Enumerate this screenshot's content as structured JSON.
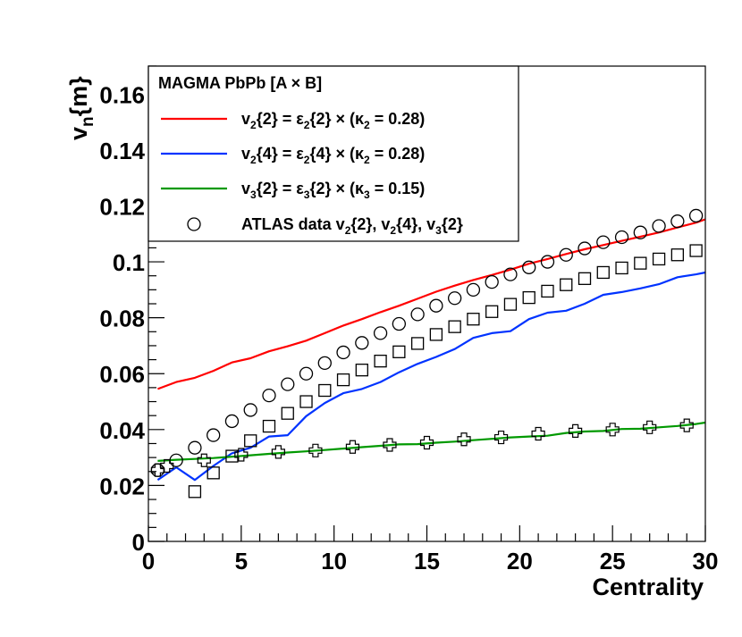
{
  "chart_data": {
    "type": "line",
    "title": "",
    "xlabel": "Centrality",
    "ylabel": "v_n{m}",
    "ylabel_main": "v",
    "ylabel_sub": "n",
    "ylabel_rest": "{m}",
    "xlim": [
      0,
      30
    ],
    "ylim": [
      0,
      0.17
    ],
    "x_ticks": [
      0,
      5,
      10,
      15,
      20,
      25,
      30
    ],
    "x_tick_labels": [
      "0",
      "5",
      "10",
      "15",
      "20",
      "25",
      "30"
    ],
    "y_ticks": [
      0,
      0.02,
      0.04,
      0.06,
      0.08,
      0.1,
      0.12,
      0.14,
      0.16
    ],
    "y_tick_labels": [
      "0",
      "0.02",
      "0.04",
      "0.06",
      "0.08",
      "0.1",
      "0.12",
      "0.14",
      "0.16"
    ],
    "grid": false,
    "legend_position": "top-left",
    "legend_title": "MAGMA PbPb [A × B]",
    "legend": [
      {
        "label": "v2{2} = ε2{2} × (κ2 = 0.28)",
        "kind": "line",
        "color": "#ff0000"
      },
      {
        "label": "v2{4} = ε2{4} × (κ2 = 0.28)",
        "kind": "line",
        "color": "#0033ff"
      },
      {
        "label": "v3{2} = ε3{2} × (κ3 = 0.15)",
        "kind": "line",
        "color": "#009900"
      },
      {
        "label": "ATLAS data v2{2}, v2{4}, v3{2}",
        "kind": "marker",
        "color": "#000000"
      }
    ],
    "series": [
      {
        "name": "v2{2} = ε2{2} × (κ2 = 0.28)",
        "kind": "line",
        "color": "#ff0000",
        "x": [
          0.5,
          1.5,
          2.5,
          3.5,
          4.5,
          5.5,
          6.5,
          7.5,
          8.5,
          9.5,
          10.5,
          11.5,
          12.5,
          13.5,
          14.5,
          15.5,
          16.5,
          17.5,
          18.5,
          19.5,
          20.5,
          21.5,
          22.5,
          23.5,
          24.5,
          25.5,
          26.5,
          27.5,
          28.5,
          29.5,
          30
        ],
        "y": [
          0.0545,
          0.057,
          0.0585,
          0.061,
          0.064,
          0.0655,
          0.068,
          0.0698,
          0.0718,
          0.0745,
          0.0772,
          0.0795,
          0.082,
          0.0843,
          0.0868,
          0.0893,
          0.0915,
          0.0935,
          0.0953,
          0.0972,
          0.0993,
          0.101,
          0.1028,
          0.1045,
          0.106,
          0.1075,
          0.109,
          0.1105,
          0.1123,
          0.114,
          0.1152
        ]
      },
      {
        "name": "v2{4} = ε2{4} × (κ2 = 0.28)",
        "kind": "line",
        "color": "#0033ff",
        "x": [
          0.5,
          1.5,
          2.5,
          3.5,
          4.5,
          5.5,
          6.5,
          7.5,
          8.5,
          9.5,
          10.5,
          11.5,
          12.5,
          13.5,
          14.5,
          15.5,
          16.5,
          17.5,
          18.5,
          19.5,
          20.5,
          21.5,
          22.5,
          23.5,
          24.5,
          25.5,
          26.5,
          27.5,
          28.5,
          29.5,
          30
        ],
        "y": [
          0.022,
          0.0265,
          0.022,
          0.027,
          0.0315,
          0.0335,
          0.0375,
          0.038,
          0.0448,
          0.0495,
          0.053,
          0.0545,
          0.057,
          0.0605,
          0.0635,
          0.066,
          0.0688,
          0.0728,
          0.0745,
          0.0752,
          0.0795,
          0.0818,
          0.0825,
          0.085,
          0.0882,
          0.0892,
          0.0905,
          0.092,
          0.0945,
          0.0955,
          0.0962
        ]
      },
      {
        "name": "v3{2} = ε3{2} × (κ3 = 0.15)",
        "kind": "line",
        "color": "#009900",
        "x": [
          0.5,
          1.5,
          2.5,
          3.5,
          4.5,
          5.5,
          6.5,
          7.5,
          8.5,
          9.5,
          10.5,
          11.5,
          12.5,
          13.5,
          14.5,
          15.5,
          16.5,
          17.5,
          18.5,
          19.5,
          20.5,
          21.5,
          22.5,
          23.5,
          24.5,
          25.5,
          26.5,
          27.5,
          28.5,
          29.5,
          30
        ],
        "y": [
          0.0288,
          0.0292,
          0.0295,
          0.0298,
          0.0303,
          0.0308,
          0.0313,
          0.0318,
          0.0322,
          0.0327,
          0.0332,
          0.0337,
          0.0342,
          0.0347,
          0.0348,
          0.0353,
          0.0357,
          0.0362,
          0.0367,
          0.0372,
          0.0375,
          0.0378,
          0.0388,
          0.0393,
          0.0395,
          0.0402,
          0.0403,
          0.0408,
          0.0413,
          0.042,
          0.0425
        ]
      },
      {
        "name": "ATLAS data v2{2}",
        "kind": "marker",
        "marker": "circle",
        "color": "#000000",
        "x": [
          0.5,
          1.5,
          2.5,
          3.5,
          4.5,
          5.5,
          6.5,
          7.5,
          8.5,
          9.5,
          10.5,
          11.5,
          12.5,
          13.5,
          14.5,
          15.5,
          16.5,
          17.5,
          18.5,
          19.5,
          20.5,
          21.5,
          22.5,
          23.5,
          24.5,
          25.5,
          26.5,
          27.5,
          28.5,
          29.5
        ],
        "y": [
          0.0255,
          0.029,
          0.0335,
          0.038,
          0.043,
          0.047,
          0.0522,
          0.0562,
          0.06,
          0.0638,
          0.0676,
          0.071,
          0.0745,
          0.0778,
          0.0812,
          0.0843,
          0.087,
          0.09,
          0.0928,
          0.0955,
          0.098,
          0.1,
          0.1025,
          0.1048,
          0.107,
          0.1088,
          0.1105,
          0.1128,
          0.1145,
          0.1165
        ]
      },
      {
        "name": "ATLAS data v2{4}",
        "kind": "marker",
        "marker": "square",
        "color": "#000000",
        "x": [
          2.5,
          3.5,
          4.5,
          5.5,
          6.5,
          7.5,
          8.5,
          9.5,
          10.5,
          11.5,
          12.5,
          13.5,
          14.5,
          15.5,
          16.5,
          17.5,
          18.5,
          19.5,
          20.5,
          21.5,
          22.5,
          23.5,
          24.5,
          25.5,
          26.5,
          27.5,
          28.5,
          29.5
        ],
        "y": [
          0.0178,
          0.0245,
          0.0305,
          0.036,
          0.0412,
          0.0458,
          0.05,
          0.054,
          0.0578,
          0.0613,
          0.0645,
          0.0678,
          0.0708,
          0.074,
          0.0768,
          0.0795,
          0.0822,
          0.0848,
          0.0872,
          0.0895,
          0.0918,
          0.094,
          0.0962,
          0.0978,
          0.0995,
          0.101,
          0.1025,
          0.104
        ]
      },
      {
        "name": "ATLAS data v3{2}",
        "kind": "marker",
        "marker": "cross",
        "color": "#000000",
        "x": [
          0.5,
          1.0,
          3.0,
          5.0,
          7.0,
          9.0,
          11.0,
          13.0,
          15.0,
          17.0,
          19.0,
          21.0,
          23.0,
          25.0,
          27.0,
          29.0
        ],
        "y": [
          0.0255,
          0.027,
          0.029,
          0.031,
          0.032,
          0.0325,
          0.0338,
          0.0345,
          0.0353,
          0.0365,
          0.0372,
          0.0385,
          0.0395,
          0.04,
          0.0408,
          0.0415
        ]
      }
    ]
  }
}
